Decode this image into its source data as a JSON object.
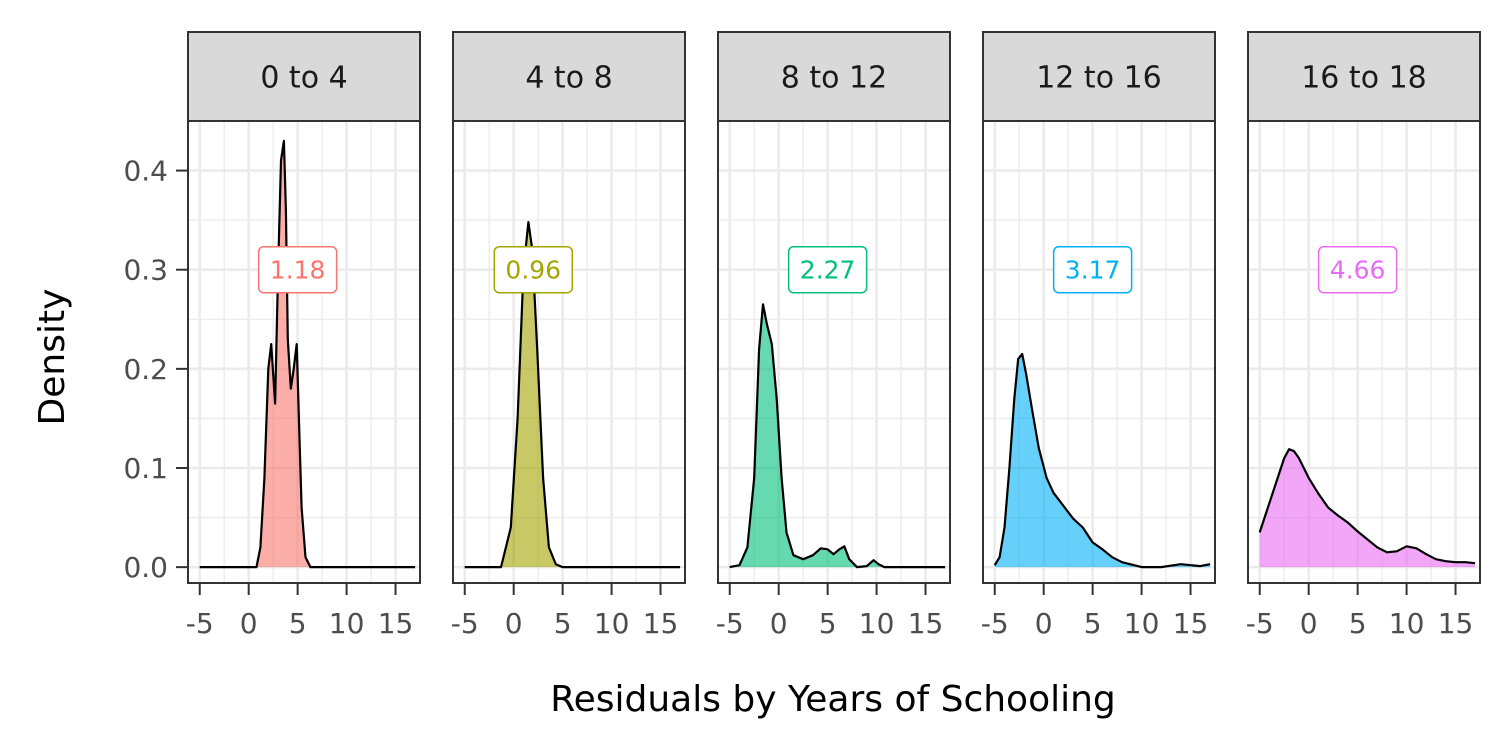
{
  "chart_data": {
    "type": "area",
    "xlabel": "Residuals by Years of Schooling",
    "ylabel": "Density",
    "xlim": [
      -6.2,
      17.5
    ],
    "ylim": [
      -0.016,
      0.45
    ],
    "x_ticks": [
      -5,
      0,
      5,
      10,
      15
    ],
    "y_ticks": [
      0.0,
      0.1,
      0.2,
      0.3,
      0.4
    ],
    "y_tick_labels": [
      "0.0",
      "0.1",
      "0.2",
      "0.3",
      "0.4"
    ],
    "grid": true,
    "label_y": 0.3,
    "panels": [
      {
        "strip": "0 to 4",
        "label": "1.18",
        "label_x": 5,
        "color": "#f8766d",
        "x": [
          -5,
          0.8,
          1.2,
          1.6,
          2.0,
          2.3,
          2.7,
          3.0,
          3.3,
          3.6,
          3.8,
          4.0,
          4.3,
          4.6,
          4.9,
          5.1,
          5.4,
          5.8,
          6.3,
          17
        ],
        "y": [
          0.0,
          0.0,
          0.02,
          0.09,
          0.2,
          0.225,
          0.165,
          0.3,
          0.41,
          0.43,
          0.36,
          0.23,
          0.18,
          0.2,
          0.225,
          0.16,
          0.06,
          0.01,
          0.0,
          0.0
        ]
      },
      {
        "strip": "4 to 8",
        "label": "0.96",
        "label_x": 2,
        "color": "#a3a500",
        "x": [
          -5,
          -1.3,
          -0.3,
          0.4,
          1.0,
          1.5,
          1.9,
          2.4,
          3.0,
          3.6,
          4.3,
          5.0,
          17
        ],
        "y": [
          0.0,
          0.0,
          0.04,
          0.15,
          0.3,
          0.348,
          0.32,
          0.22,
          0.09,
          0.02,
          0.003,
          0.0,
          0.0
        ]
      },
      {
        "strip": "8 to 12",
        "label": "2.27",
        "label_x": 5,
        "color": "#00bf7d",
        "x": [
          -5,
          -4.0,
          -3.2,
          -2.5,
          -2.0,
          -1.6,
          -1.2,
          -0.7,
          -0.2,
          0.3,
          0.8,
          1.5,
          2.5,
          3.5,
          4.3,
          5.0,
          5.6,
          6.2,
          6.7,
          7.2,
          8.0,
          9.0,
          9.7,
          10.2,
          10.8,
          17
        ],
        "y": [
          0.0,
          0.002,
          0.02,
          0.09,
          0.22,
          0.265,
          0.245,
          0.225,
          0.17,
          0.09,
          0.035,
          0.012,
          0.008,
          0.012,
          0.019,
          0.018,
          0.013,
          0.018,
          0.021,
          0.008,
          0.0,
          0.001,
          0.007,
          0.003,
          0.0,
          0.0
        ]
      },
      {
        "strip": "12 to 16",
        "label": "3.17",
        "label_x": 5,
        "color": "#00b0f6",
        "x": [
          -5,
          -4.5,
          -4.0,
          -3.5,
          -3.0,
          -2.6,
          -2.2,
          -1.8,
          -1.2,
          -0.5,
          0.3,
          1.0,
          2.0,
          3.0,
          4.0,
          5.0,
          6.0,
          7.0,
          8.0,
          10.0,
          12.0,
          14.0,
          16.0,
          17
        ],
        "y": [
          0.002,
          0.01,
          0.04,
          0.1,
          0.17,
          0.21,
          0.215,
          0.195,
          0.16,
          0.12,
          0.09,
          0.075,
          0.062,
          0.049,
          0.04,
          0.025,
          0.018,
          0.01,
          0.005,
          0.0,
          0.0,
          0.003,
          0.001,
          0.003
        ]
      },
      {
        "strip": "16 to 18",
        "label": "4.66",
        "label_x": 5,
        "color": "#e76bf3",
        "x": [
          -5,
          -4.0,
          -3.0,
          -2.5,
          -2.0,
          -1.5,
          -1.0,
          0.0,
          1.0,
          2.0,
          3.0,
          4.0,
          5.0,
          6.0,
          7.0,
          8.0,
          9.0,
          10.0,
          11.0,
          12.0,
          13.0,
          14.0,
          15.0,
          16.0,
          17.0
        ],
        "y": [
          0.035,
          0.065,
          0.095,
          0.11,
          0.119,
          0.117,
          0.11,
          0.09,
          0.074,
          0.06,
          0.052,
          0.045,
          0.036,
          0.028,
          0.02,
          0.015,
          0.016,
          0.021,
          0.019,
          0.013,
          0.008,
          0.006,
          0.005,
          0.005,
          0.004
        ]
      }
    ]
  }
}
